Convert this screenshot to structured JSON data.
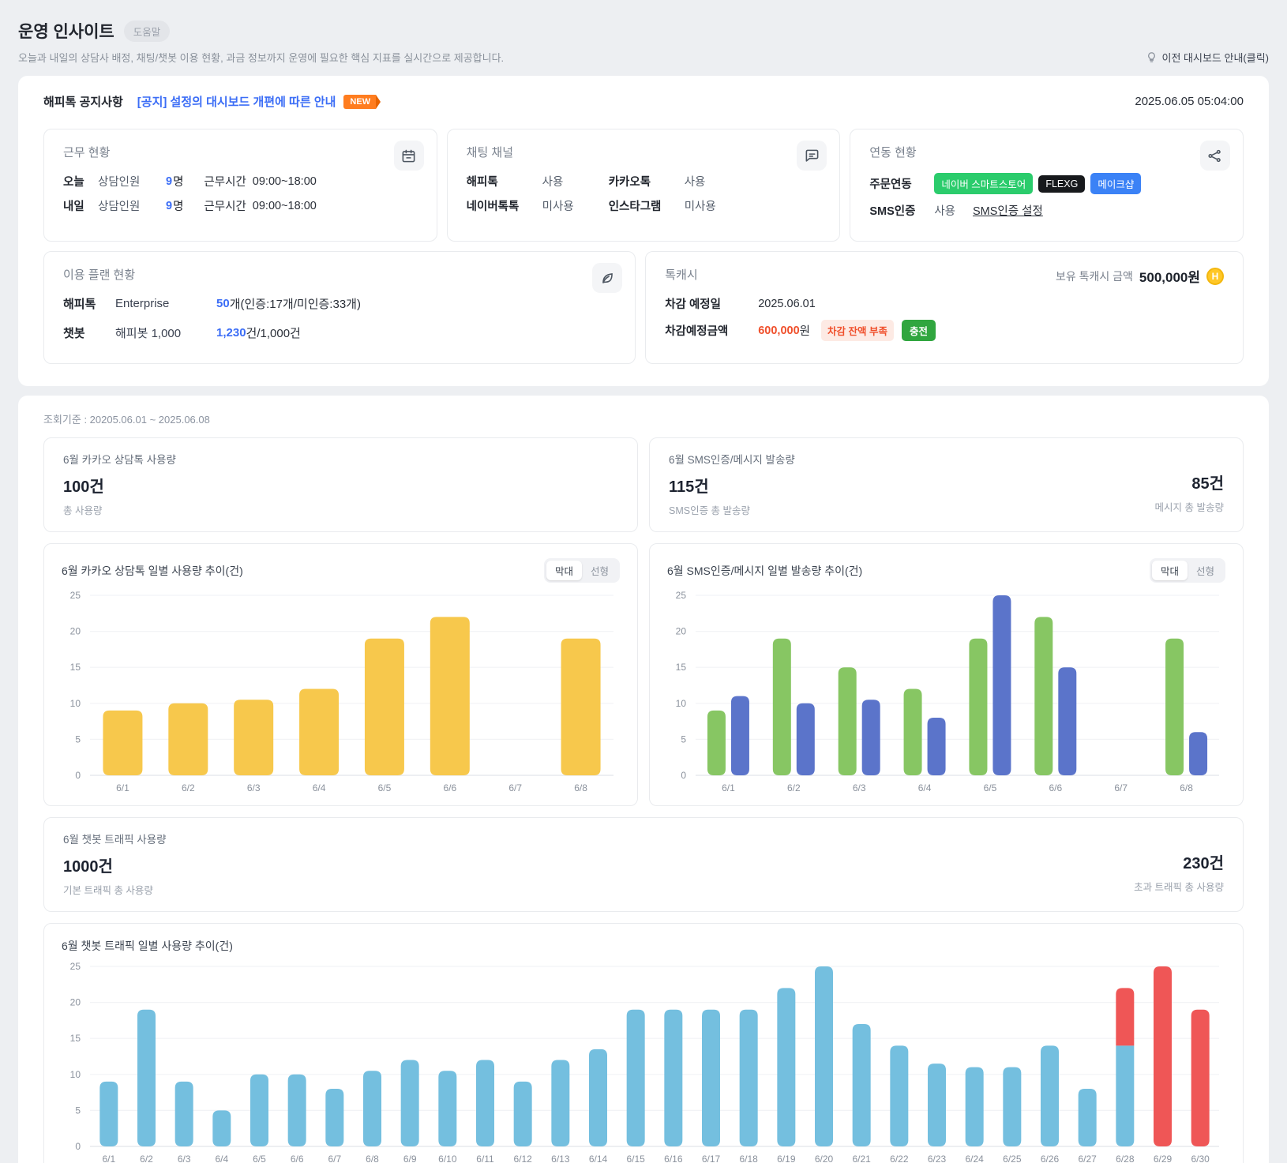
{
  "header": {
    "title": "운영 인사이트",
    "help_badge": "도움말",
    "subtitle": "오늘과 내일의 상담사 배정, 채팅/챗봇 이용 현황, 과금 정보까지 운영에 필요한 핵심 지표를 실시간으로 제공합니다.",
    "prev_dashboard": "이전 대시보드 안내(클릭)"
  },
  "notice": {
    "label": "해피톡 공지사항",
    "link": "[공지] 설정의 대시보드 개편에 따른 안내",
    "badge": "NEW",
    "datetime": "2025.06.05 05:04:00"
  },
  "cards": {
    "work": {
      "title": "근무 현황",
      "rows": [
        {
          "day": "오늘",
          "label": "상담인원",
          "count": "9",
          "unit": "명",
          "time_label": "근무시간",
          "time": "09:00~18:00"
        },
        {
          "day": "내일",
          "label": "상담인원",
          "count": "9",
          "unit": "명",
          "time_label": "근무시간",
          "time": "09:00~18:00"
        }
      ]
    },
    "channels": {
      "title": "채팅 채널",
      "items": [
        {
          "name": "해피톡",
          "status": "사용"
        },
        {
          "name": "카카오톡",
          "status": "사용"
        },
        {
          "name": "네이버톡톡",
          "status": "미사용"
        },
        {
          "name": "인스타그램",
          "status": "미사용"
        }
      ]
    },
    "integration": {
      "title": "연동 현황",
      "order_label": "주문연동",
      "badges": [
        {
          "label": "네이버 스마트스토어",
          "color": "#2bcc6c"
        },
        {
          "label": "FLEXG",
          "color": "#17191c"
        },
        {
          "label": "메이크샵",
          "color": "#3b82f6"
        }
      ],
      "sms_label": "SMS인증",
      "sms_status": "사용",
      "sms_link": "SMS인증 설정"
    },
    "plan": {
      "title": "이용 플랜 현황",
      "rows": [
        {
          "name": "해피톡",
          "plan": "Enterprise",
          "value": "50",
          "suffix": "개(인증:17개/미인증:33개)"
        },
        {
          "name": "챗봇",
          "plan": "해피봇 1,000",
          "value": "1,230",
          "suffix": "건/1,000건"
        }
      ]
    },
    "cash": {
      "title": "톡캐시",
      "balance_label": "보유 톡캐시 금액",
      "balance": "500,000원",
      "coin_letter": "H",
      "date_label": "차감 예정일",
      "date_value": "2025.06.01",
      "deduct_label": "차감예정금액",
      "deduct_value": "600,000",
      "deduct_unit": "원",
      "warn_badge": "차감 잔액 부족",
      "charge_button": "충전"
    }
  },
  "period": "조회기준 : 20205.06.01 ~ 2025.06.08",
  "stats": {
    "kakao": {
      "title": "6월 카카오 상담톡 사용량",
      "value": "100건",
      "caption": "총 사용량"
    },
    "sms": {
      "title": "6월 SMS인증/메시지 발송량",
      "left_value": "115건",
      "left_caption": "SMS인증 총 발송량",
      "right_value": "85건",
      "right_caption": "메시지 총 발송량"
    },
    "chatbot": {
      "title": "6월 챗봇 트래픽 사용량",
      "left_value": "1000건",
      "left_caption": "기본 트래픽 총 사용량",
      "right_value": "230건",
      "right_caption": "초과 트래픽 총 사용량"
    }
  },
  "chart_toggle": {
    "bar": "막대",
    "line": "선형"
  },
  "chart_data": [
    {
      "type": "bar",
      "title": "6월 카카오 상담톡 일별 사용량 추이(건)",
      "categories": [
        "6/1",
        "6/2",
        "6/3",
        "6/4",
        "6/5",
        "6/6",
        "6/7",
        "6/8"
      ],
      "values": [
        9,
        10,
        10.5,
        12,
        19,
        22,
        0,
        19
      ],
      "color": "#f7c84c",
      "ylim": [
        0,
        25
      ],
      "yticks": [
        0,
        5,
        10,
        15,
        20,
        25
      ],
      "grid": true,
      "legend": "none",
      "toggle": true
    },
    {
      "type": "bar",
      "title": "6월 SMS인증/메시지 일별 발송량 추이(건)",
      "categories": [
        "6/1",
        "6/2",
        "6/3",
        "6/4",
        "6/5",
        "6/6",
        "6/7",
        "6/8"
      ],
      "series": [
        {
          "name": "SMS인증",
          "color": "#87c663",
          "values": [
            9,
            19,
            15,
            12,
            19,
            22,
            0,
            19
          ]
        },
        {
          "name": "메시지",
          "color": "#5b74ca",
          "values": [
            11,
            10,
            10.5,
            8,
            25,
            15,
            0,
            6
          ]
        }
      ],
      "ylim": [
        0,
        25
      ],
      "yticks": [
        0,
        5,
        10,
        15,
        20,
        25
      ],
      "grid": true,
      "legend": "none",
      "toggle": true
    },
    {
      "type": "bar",
      "stacked": true,
      "title": "6월 챗봇 트래픽 일별 사용량 추이(건)",
      "categories": [
        "6/1",
        "6/2",
        "6/3",
        "6/4",
        "6/5",
        "6/6",
        "6/7",
        "6/8",
        "6/9",
        "6/10",
        "6/11",
        "6/12",
        "6/13",
        "6/14",
        "6/15",
        "6/16",
        "6/17",
        "6/18",
        "6/19",
        "6/20",
        "6/21",
        "6/22",
        "6/23",
        "6/24",
        "6/25",
        "6/26",
        "6/27",
        "6/28",
        "6/29",
        "6/30"
      ],
      "series": [
        {
          "name": "기본 트래픽",
          "color": "#74bfdf",
          "values": [
            9,
            19,
            9,
            5,
            10,
            10,
            8,
            10.5,
            12,
            10.5,
            12,
            9,
            12,
            13.5,
            19,
            19,
            19,
            19,
            22,
            25,
            17,
            14,
            11.5,
            11,
            11,
            14,
            8,
            14,
            0,
            0
          ]
        },
        {
          "name": "초과 트래픽",
          "color": "#ef5656",
          "values": [
            0,
            0,
            0,
            0,
            0,
            0,
            0,
            0,
            0,
            0,
            0,
            0,
            0,
            0,
            0,
            0,
            0,
            0,
            0,
            0,
            0,
            0,
            0,
            0,
            0,
            0,
            0,
            8,
            25,
            19
          ]
        }
      ],
      "ylim": [
        0,
        25
      ],
      "yticks": [
        0,
        5,
        10,
        15,
        20,
        25
      ],
      "grid": true,
      "legend": "none",
      "toggle": false
    }
  ]
}
